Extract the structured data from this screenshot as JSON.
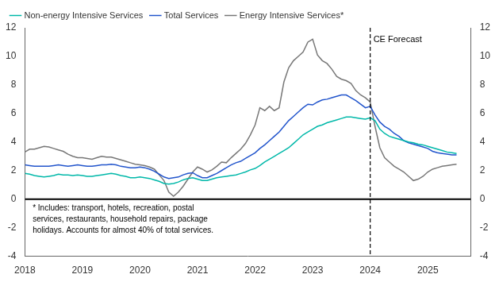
{
  "chart_data": {
    "type": "line",
    "x": [
      2018.0,
      2018.083,
      2018.167,
      2018.25,
      2018.333,
      2018.417,
      2018.5,
      2018.583,
      2018.667,
      2018.75,
      2018.833,
      2018.917,
      2019.0,
      2019.083,
      2019.167,
      2019.25,
      2019.333,
      2019.417,
      2019.5,
      2019.583,
      2019.667,
      2019.75,
      2019.833,
      2019.917,
      2020.0,
      2020.083,
      2020.167,
      2020.25,
      2020.333,
      2020.417,
      2020.5,
      2020.583,
      2020.667,
      2020.75,
      2020.833,
      2020.917,
      2021.0,
      2021.083,
      2021.167,
      2021.25,
      2021.333,
      2021.417,
      2021.5,
      2021.583,
      2021.667,
      2021.75,
      2021.833,
      2021.917,
      2022.0,
      2022.083,
      2022.167,
      2022.25,
      2022.333,
      2022.417,
      2022.5,
      2022.583,
      2022.667,
      2022.75,
      2022.833,
      2022.917,
      2023.0,
      2023.083,
      2023.167,
      2023.25,
      2023.333,
      2023.417,
      2023.5,
      2023.583,
      2023.667,
      2023.75,
      2023.833,
      2023.917,
      2024.0,
      2024.083,
      2024.167,
      2024.25,
      2024.333,
      2024.417,
      2024.5,
      2024.583,
      2024.667,
      2024.75,
      2024.833,
      2024.917,
      2025.0,
      2025.083,
      2025.167,
      2025.25,
      2025.333,
      2025.417,
      2025.5
    ],
    "series": [
      {
        "name": "Non-energy Intensive Services",
        "color": "#00B8A9",
        "values": [
          1.8,
          1.75,
          1.65,
          1.6,
          1.55,
          1.6,
          1.65,
          1.75,
          1.7,
          1.7,
          1.65,
          1.7,
          1.65,
          1.6,
          1.6,
          1.65,
          1.7,
          1.75,
          1.8,
          1.75,
          1.65,
          1.6,
          1.5,
          1.5,
          1.55,
          1.5,
          1.45,
          1.35,
          1.25,
          1.1,
          1.05,
          1.1,
          1.2,
          1.35,
          1.45,
          1.5,
          1.4,
          1.3,
          1.3,
          1.4,
          1.5,
          1.55,
          1.6,
          1.65,
          1.7,
          1.8,
          1.9,
          2.05,
          2.15,
          2.35,
          2.6,
          2.8,
          3.0,
          3.2,
          3.4,
          3.6,
          3.9,
          4.2,
          4.5,
          4.7,
          4.9,
          5.1,
          5.2,
          5.35,
          5.45,
          5.55,
          5.65,
          5.75,
          5.75,
          5.7,
          5.65,
          5.6,
          5.7,
          5.5,
          4.9,
          4.6,
          4.4,
          4.3,
          4.2,
          4.1,
          4.0,
          3.95,
          3.85,
          3.8,
          3.7,
          3.6,
          3.5,
          3.4,
          3.3,
          3.25,
          3.2
        ]
      },
      {
        "name": "Total Services",
        "color": "#2255CC",
        "values": [
          2.4,
          2.35,
          2.3,
          2.3,
          2.3,
          2.3,
          2.35,
          2.4,
          2.35,
          2.3,
          2.35,
          2.4,
          2.35,
          2.3,
          2.3,
          2.35,
          2.4,
          2.4,
          2.45,
          2.4,
          2.3,
          2.25,
          2.2,
          2.2,
          2.25,
          2.2,
          2.1,
          1.95,
          1.75,
          1.55,
          1.45,
          1.5,
          1.55,
          1.7,
          1.8,
          1.85,
          1.65,
          1.5,
          1.5,
          1.65,
          1.8,
          2.0,
          2.2,
          2.4,
          2.55,
          2.65,
          2.85,
          3.05,
          3.25,
          3.55,
          3.8,
          4.1,
          4.4,
          4.7,
          5.1,
          5.5,
          5.8,
          6.1,
          6.4,
          6.65,
          6.6,
          6.8,
          6.95,
          7.0,
          7.1,
          7.2,
          7.3,
          7.3,
          7.1,
          6.9,
          6.65,
          6.4,
          6.5,
          5.9,
          5.4,
          5.1,
          4.9,
          4.6,
          4.4,
          4.1,
          3.95,
          3.85,
          3.75,
          3.65,
          3.55,
          3.35,
          3.25,
          3.2,
          3.15,
          3.1,
          3.1
        ]
      },
      {
        "name": "Energy Intensive Services*",
        "color": "#777777",
        "values": [
          3.3,
          3.5,
          3.5,
          3.6,
          3.7,
          3.65,
          3.55,
          3.45,
          3.35,
          3.15,
          3.0,
          2.9,
          2.9,
          2.85,
          2.8,
          2.9,
          3.0,
          2.95,
          2.95,
          2.85,
          2.75,
          2.65,
          2.55,
          2.45,
          2.4,
          2.35,
          2.25,
          2.1,
          1.7,
          1.3,
          0.5,
          0.2,
          0.5,
          0.9,
          1.4,
          1.9,
          2.25,
          2.1,
          1.9,
          2.05,
          2.3,
          2.6,
          2.55,
          2.9,
          3.2,
          3.5,
          3.9,
          4.5,
          5.2,
          6.4,
          6.2,
          6.5,
          6.2,
          6.4,
          8.2,
          9.2,
          9.7,
          10.0,
          10.3,
          11.0,
          11.2,
          10.1,
          9.7,
          9.5,
          9.1,
          8.6,
          8.4,
          8.3,
          8.1,
          7.6,
          7.3,
          7.1,
          6.8,
          5.1,
          3.6,
          2.9,
          2.6,
          2.3,
          2.1,
          1.9,
          1.6,
          1.3,
          1.4,
          1.6,
          1.9,
          2.1,
          2.2,
          2.3,
          2.35,
          2.4,
          2.45
        ]
      }
    ],
    "xlim": [
      2018.0,
      2025.75
    ],
    "xticks": [
      2018,
      2019,
      2020,
      2021,
      2022,
      2023,
      2024,
      2025
    ],
    "ylim": [
      -4,
      12
    ],
    "yticks": [
      -4,
      -2,
      0,
      2,
      4,
      6,
      8,
      10,
      12
    ],
    "y2lim": [
      -4,
      12
    ],
    "y2ticks": [
      -4,
      -2,
      0,
      2,
      4,
      6,
      8,
      10,
      12
    ],
    "hlines": [
      {
        "y": 0,
        "color": "#000000"
      }
    ],
    "vlines": [
      {
        "x": 2024.0,
        "color": "#000000",
        "line_style": "dashed"
      }
    ],
    "annotations": [
      {
        "text": "CE Forecast",
        "x": 2024.0,
        "y": 11.5
      },
      {
        "text": "* Includes: transport, hotels, recreation, postal\nservices, restaurants, household repairs, package\nholidays. Accounts for almost 40% of total services.",
        "x": 2018.08,
        "y": -0.35
      }
    ],
    "legend": "upper left",
    "grid": false
  }
}
